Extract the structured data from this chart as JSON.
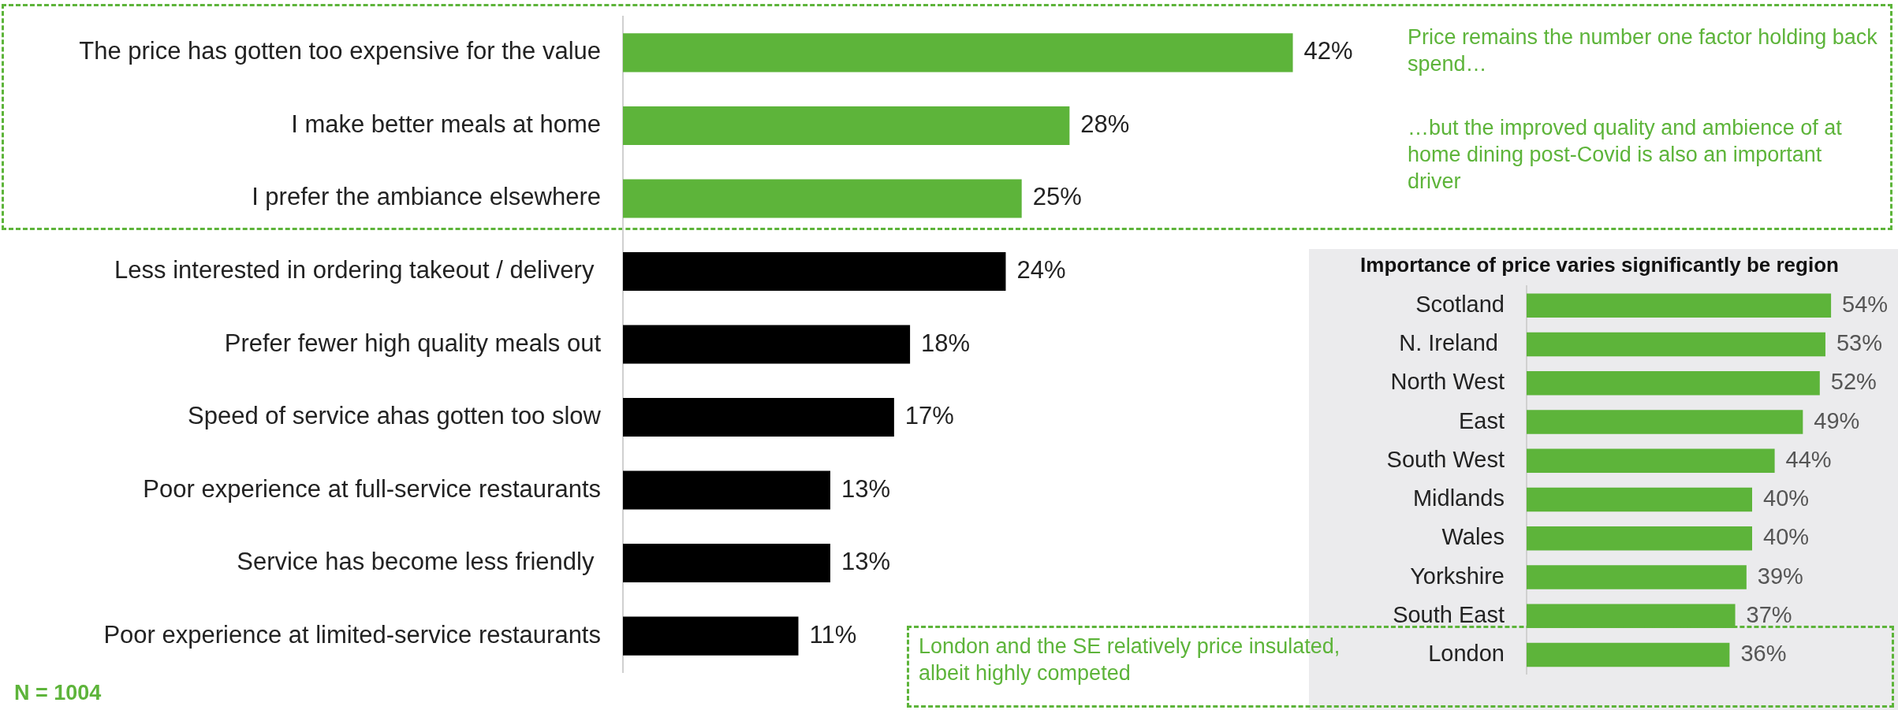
{
  "chart_data": [
    {
      "type": "bar",
      "orientation": "horizontal",
      "tick_labels": "y",
      "categories": [
        "The price has gotten too expensive for the value",
        "I make better meals at home",
        "I prefer the ambiance elsewhere",
        "Less interested in ordering takeout / delivery ",
        "Prefer fewer high quality meals out",
        "Speed of service ahas gotten too slow",
        "Poor experience at full-service restaurants",
        "Service has become less friendly ",
        "Poor experience at limited-service restaurants"
      ],
      "values": [
        42,
        28,
        25,
        24,
        18,
        17,
        13,
        13,
        11
      ],
      "colors": [
        "#5db43a",
        "#5db43a",
        "#5db43a",
        "#000000",
        "#000000",
        "#000000",
        "#000000",
        "#000000",
        "#000000"
      ],
      "value_labels": [
        "42%",
        "28%",
        "25%",
        "24%",
        "18%",
        "17%",
        "13%",
        "13%",
        "11%"
      ],
      "annotations": [
        "Price remains the number one factor holding back spend…",
        "…but the improved quality and ambience of at home dining post-Covid is also an important driver",
        "London and the SE relatively price insulated, albeit highly competed",
        "N =  1004"
      ]
    },
    {
      "type": "bar",
      "orientation": "horizontal",
      "tick_labels": "y",
      "title": "Importance of price varies significantly be region",
      "categories": [
        "Scotland",
        "N. Ireland ",
        "North West",
        "East",
        "South West",
        "Midlands",
        "Wales",
        "Yorkshire",
        "South East",
        "London"
      ],
      "values": [
        54,
        53,
        52,
        49,
        44,
        40,
        40,
        39,
        37,
        36
      ],
      "color": "#5db43a",
      "value_labels": [
        "54%",
        "53%",
        "52%",
        "49%",
        "44%",
        "40%",
        "40%",
        "39%",
        "37%",
        "36%"
      ]
    }
  ]
}
